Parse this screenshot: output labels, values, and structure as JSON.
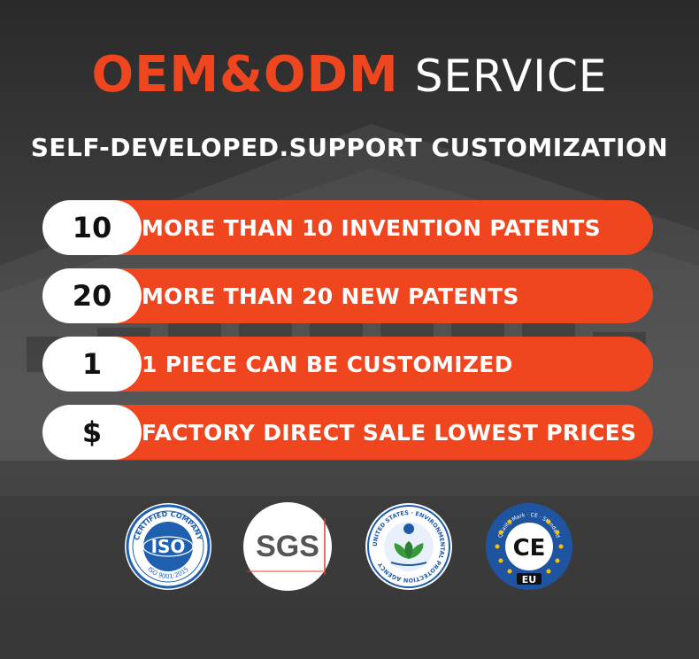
{
  "headline": {
    "accent": "OEM&ODM",
    "plain": "SERVICE"
  },
  "subheadline": "SELF-DEVELOPED.SUPPORT CUSTOMIZATION",
  "features": [
    {
      "badge": "10",
      "text": "MORE THAN 10 INVENTION PATENTS"
    },
    {
      "badge": "20",
      "text": "MORE THAN 20 NEW PATENTS"
    },
    {
      "badge": "1",
      "text": "1 PIECE CAN BE CUSTOMIZED"
    },
    {
      "badge": "$",
      "text": "FACTORY DIRECT SALE LOWEST PRICES"
    }
  ],
  "certifications": {
    "iso": {
      "top_text": "CERTIFIED COMPANY",
      "center_text": "ISO",
      "bottom_text": "ISO 9001:2015"
    },
    "sgs": {
      "text": "SGS"
    },
    "epa": {
      "ring_text": "UNITED STATES · ENVIRONMENTAL PROTECTION AGENCY"
    },
    "ce": {
      "center_text": "CE",
      "bottom_text": "EU",
      "ring_text": "Quality Mark · CE · Standard"
    }
  },
  "colors": {
    "accent": "#f0461f",
    "badge_bg": "#ffffff",
    "iso_blue": "#1f5fb0",
    "epa_blue": "#1e5aa8",
    "epa_green": "#3a9a3a",
    "ce_blue": "#1f55a0",
    "ce_yellow": "#f5c400"
  }
}
